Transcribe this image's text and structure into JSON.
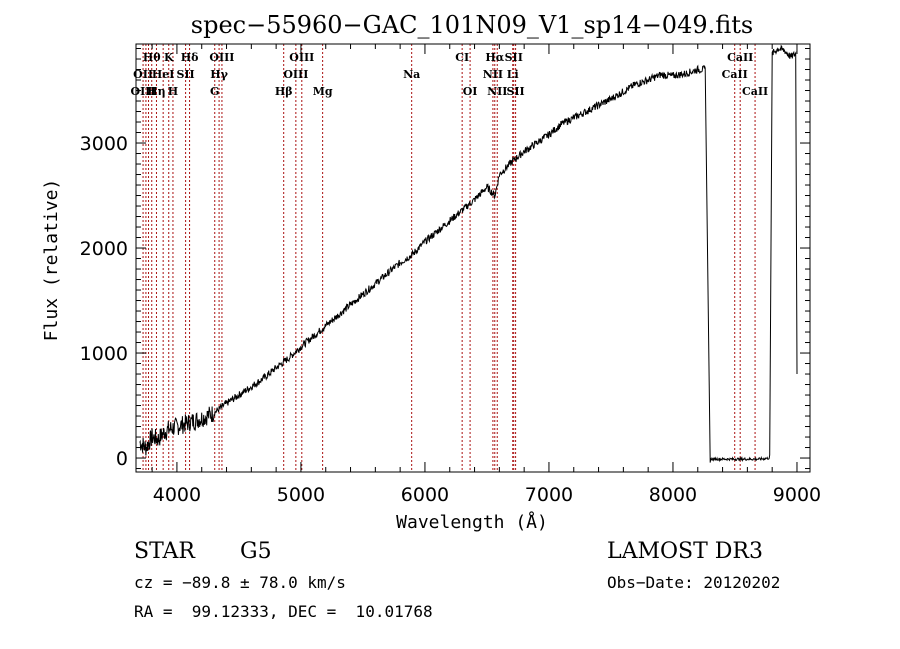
{
  "chart_data": {
    "type": "line",
    "title": "spec−55960−GAC_101N09_V1_sp14−049.fits",
    "xlabel": "Wavelength (Å)",
    "ylabel": "Flux (relative)",
    "xlim": [
      3670,
      9105
    ],
    "ylim": [
      -133,
      3943
    ],
    "xticks": [
      4000,
      5000,
      6000,
      7000,
      8000,
      9000
    ],
    "xtick_labels": [
      "4000",
      "5000",
      "6000",
      "7000",
      "8000",
      "9000"
    ],
    "yticks": [
      0,
      1000,
      2000,
      3000
    ],
    "ytick_labels": [
      "0",
      "1000",
      "2000",
      "3000"
    ],
    "x_minor_step": 200,
    "y_minor_step": 100,
    "grid": false,
    "line_color": "#000000",
    "marker_color": "#aa1111",
    "series": [
      {
        "name": "flux",
        "x": [
          3700,
          3750,
          3800,
          3850,
          3900,
          3950,
          4000,
          4100,
          4200,
          4300,
          4400,
          4500,
          4600,
          4700,
          4800,
          4900,
          5000,
          5100,
          5200,
          5300,
          5400,
          5500,
          5600,
          5700,
          5800,
          5900,
          6000,
          6100,
          6200,
          6300,
          6400,
          6500,
          6564,
          6600,
          6700,
          6800,
          6900,
          7000,
          7100,
          7200,
          7300,
          7400,
          7500,
          7600,
          7700,
          7800,
          7900,
          8000,
          8100,
          8200,
          8260,
          8300,
          8400,
          8500,
          8600,
          8700,
          8780,
          8800,
          8850,
          8900,
          8950,
          8990,
          9000
        ],
        "y": [
          150,
          100,
          200,
          180,
          250,
          280,
          300,
          340,
          380,
          430,
          520,
          600,
          680,
          760,
          860,
          950,
          1060,
          1160,
          1260,
          1360,
          1460,
          1560,
          1660,
          1760,
          1860,
          1940,
          2060,
          2160,
          2260,
          2360,
          2460,
          2580,
          2500,
          2700,
          2820,
          2920,
          3000,
          3080,
          3180,
          3240,
          3300,
          3360,
          3420,
          3490,
          3560,
          3600,
          3650,
          3640,
          3660,
          3700,
          3700,
          -10,
          -10,
          -10,
          -10,
          -10,
          0,
          3850,
          3900,
          3880,
          3820,
          3850,
          800
        ]
      }
    ],
    "line_markers": [
      {
        "label": "Hθ",
        "wavelength": 3797,
        "row": 0
      },
      {
        "label": "K",
        "wavelength": 3934,
        "row": 0
      },
      {
        "label": "Hδ",
        "wavelength": 4102,
        "row": 0
      },
      {
        "label": "OIII",
        "wavelength": 4363,
        "row": 0
      },
      {
        "label": "OIII",
        "wavelength": 5007,
        "row": 0
      },
      {
        "label": "CI",
        "wavelength": 6300,
        "row": 0
      },
      {
        "label": "Hα",
        "wavelength": 6563,
        "row": 0
      },
      {
        "label": "SII",
        "wavelength": 6716,
        "row": 0
      },
      {
        "label": "CaII",
        "wavelength": 8542,
        "row": 0
      },
      {
        "label": "OII",
        "wavelength": 3727,
        "row": 1
      },
      {
        "label": "HeI",
        "wavelength": 3889,
        "row": 1
      },
      {
        "label": "SII",
        "wavelength": 4070,
        "row": 1
      },
      {
        "label": "Hγ",
        "wavelength": 4340,
        "row": 1
      },
      {
        "label": "OIII",
        "wavelength": 4959,
        "row": 1
      },
      {
        "label": "Na",
        "wavelength": 5893,
        "row": 1
      },
      {
        "label": "NII",
        "wavelength": 6548,
        "row": 1
      },
      {
        "label": "Li",
        "wavelength": 6708,
        "row": 1
      },
      {
        "label": "CaII",
        "wavelength": 8498,
        "row": 1
      },
      {
        "label": "OIII",
        "wavelength": 3727,
        "row": 2
      },
      {
        "label": "Hη",
        "wavelength": 3835,
        "row": 2
      },
      {
        "label": "H",
        "wavelength": 3968,
        "row": 2
      },
      {
        "label": "G",
        "wavelength": 4305,
        "row": 2
      },
      {
        "label": "Hβ",
        "wavelength": 4861,
        "row": 2
      },
      {
        "label": "Mg",
        "wavelength": 5175,
        "row": 2
      },
      {
        "label": "OI",
        "wavelength": 6364,
        "row": 2
      },
      {
        "label": "NII",
        "wavelength": 6583,
        "row": 2
      },
      {
        "label": "SII",
        "wavelength": 6731,
        "row": 2
      },
      {
        "label": "CaII",
        "wavelength": 8662,
        "row": 2
      }
    ],
    "marker_line_positions": [
      3727,
      3750,
      3771,
      3797,
      3835,
      3889,
      3934,
      3968,
      4070,
      4102,
      4305,
      4340,
      4363,
      4861,
      4959,
      5007,
      5175,
      5893,
      6300,
      6364,
      6548,
      6563,
      6583,
      6708,
      6716,
      6731,
      8498,
      8542,
      8662
    ]
  },
  "info": {
    "object_class": "STAR",
    "subclass": "G5",
    "redshift_text": "cz = −89.8 ± 78.0 km/s",
    "coords_text": "RA =  99.12333, DEC =  10.01768",
    "survey": "LAMOST DR3",
    "obs_date_text": "Obs−Date: 20120202"
  }
}
